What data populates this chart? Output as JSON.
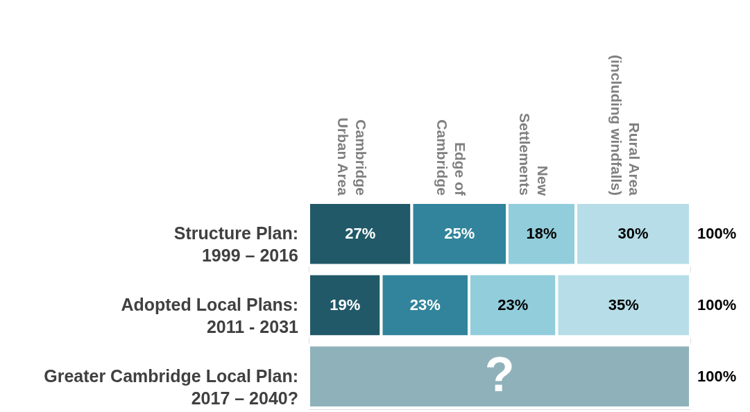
{
  "chart_data": {
    "type": "bar",
    "orientation": "horizontal",
    "stacked": true,
    "legend": "top",
    "categories": [
      "Structure Plan: 1999 – 2016",
      "Adopted Local Plans: 2011 - 2031",
      "Greater Cambridge Local Plan: 2017 – 2040?"
    ],
    "series": [
      {
        "name": "Cambridge Urban Area",
        "color": "#215968",
        "values": [
          27,
          19,
          null
        ],
        "value_labels": [
          "27%",
          "19%",
          null
        ]
      },
      {
        "name": "Edge of Cambridge",
        "color": "#31849b",
        "values": [
          25,
          23,
          null
        ],
        "value_labels": [
          "25%",
          "23%",
          null
        ]
      },
      {
        "name": "New Settlements",
        "color": "#92cddc",
        "values": [
          18,
          23,
          null
        ],
        "value_labels": [
          "18%",
          "23%",
          null
        ]
      },
      {
        "name": "Rural Area (including windfalls)",
        "color": "#b7dee8",
        "values": [
          30,
          35,
          null
        ],
        "value_labels": [
          "30%",
          "35%",
          null
        ]
      },
      {
        "color": "#8fb1ba",
        "values": [
          null,
          null,
          100
        ]
      }
    ],
    "totals": [
      "100%",
      "100%",
      "100%"
    ],
    "annotations": [
      "?"
    ]
  }
}
